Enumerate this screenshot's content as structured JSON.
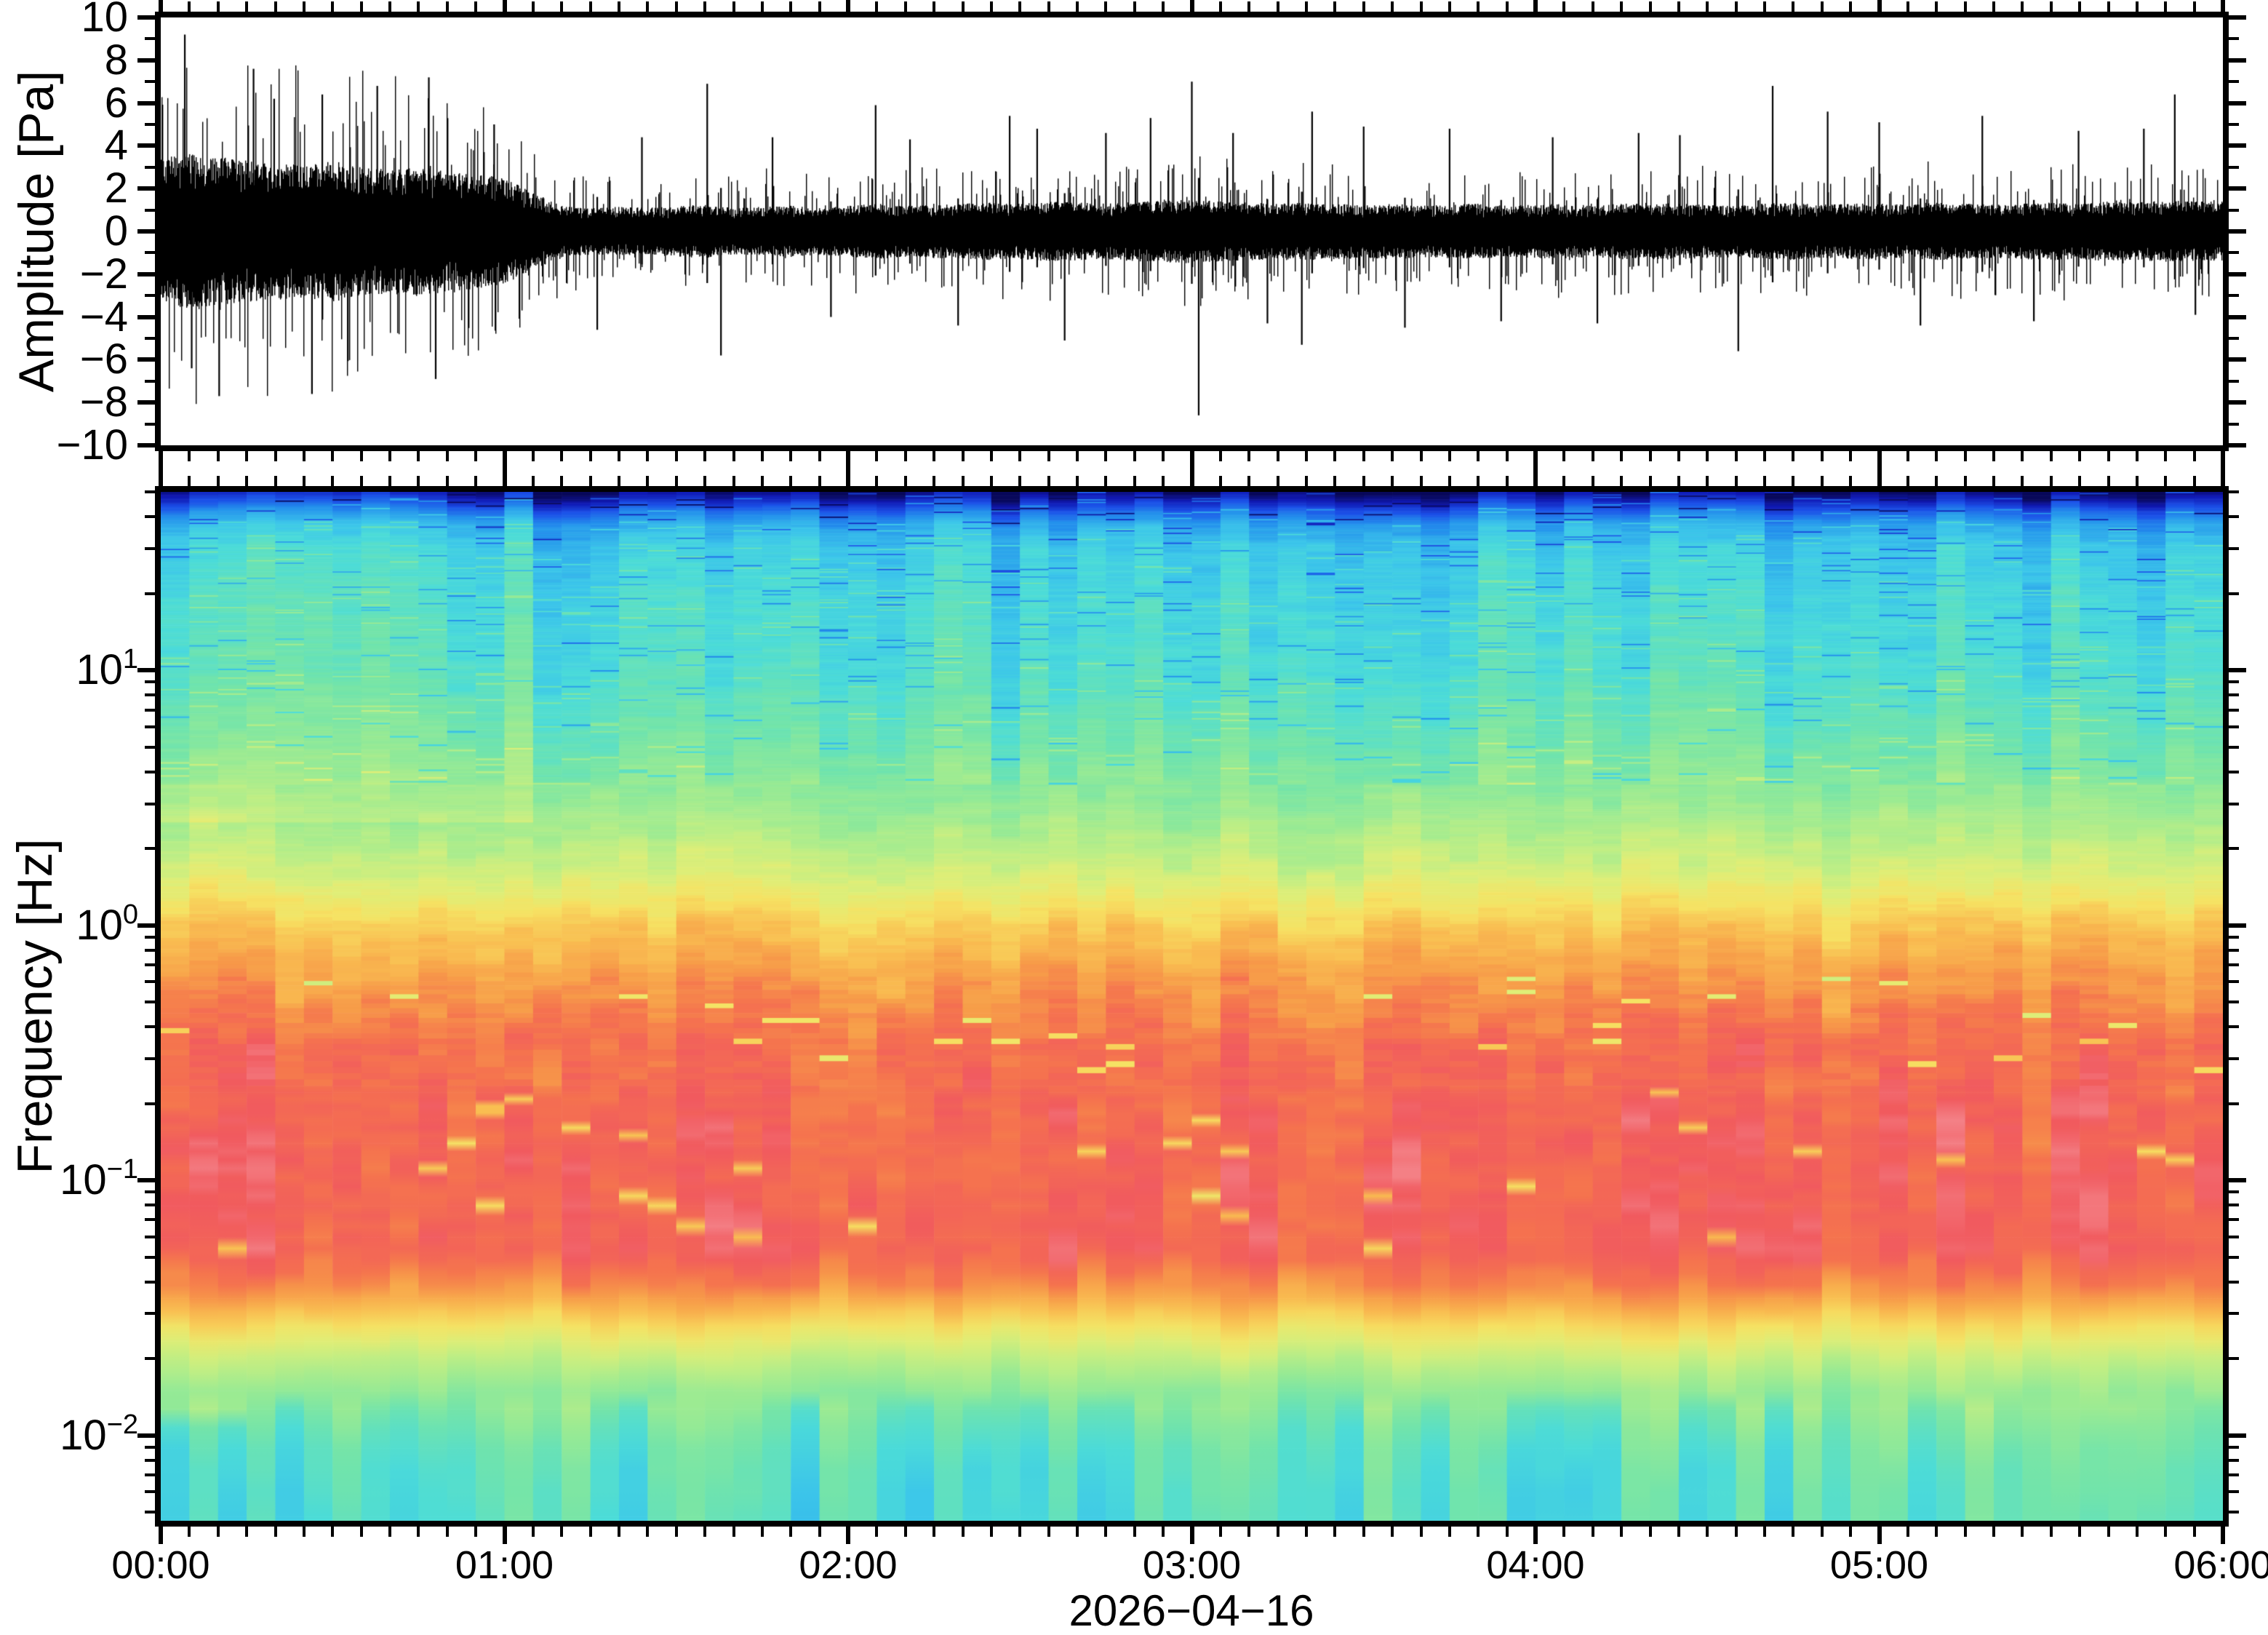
{
  "figure": {
    "background": "#ffffff",
    "frame_color": "#000000",
    "waveform_color": "#000000",
    "text_color": "#000000"
  },
  "top_plot": {
    "ylabel": "Amplitude [Pa]",
    "ytick_values": [
      10,
      8,
      6,
      4,
      2,
      0,
      -2,
      -4,
      -6,
      -8,
      -10
    ],
    "ytick_labels": [
      "10",
      "8",
      "6",
      "4",
      "2",
      "0",
      "−2",
      "−4",
      "−6",
      "−8",
      "−10"
    ],
    "yminor_step": 1,
    "ylim": [
      -10,
      10
    ]
  },
  "spectrogram_plot": {
    "ylabel": "Frequency [Hz]",
    "ytick_base": "10",
    "ytick_exponents": [
      "1",
      "0",
      "−1",
      "−2"
    ],
    "ytick_exponent_values": [
      1,
      0,
      -1,
      -2
    ],
    "freq_hz_top": 50,
    "freq_hz_bottom": 0.0046
  },
  "xaxis": {
    "tick_labels": [
      "00:00",
      "01:00",
      "02:00",
      "03:00",
      "04:00",
      "05:00",
      "06:00"
    ],
    "tick_hours": [
      0,
      1,
      2,
      3,
      4,
      5,
      6
    ],
    "minor_step_minutes": 5,
    "date_label": "2026−04−16"
  },
  "chart_data": [
    {
      "type": "line",
      "name": "infrasound-waveform",
      "ylabel": "Amplitude [Pa]",
      "ylim": [
        -10,
        10
      ],
      "x_range_hours": [
        0,
        6
      ],
      "color": "#000000",
      "seed": 20260416,
      "envelope_interval_minutes": 5,
      "envelope_pa": [
        3.4,
        3.7,
        3.5,
        3.3,
        3.2,
        3.1,
        3.3,
        3.0,
        2.9,
        3.1,
        2.8,
        2.7,
        2.5,
        1.8,
        1.2,
        1.1,
        1.15,
        1.1,
        1.2,
        1.25,
        1.1,
        1.15,
        1.2,
        1.1,
        1.2,
        1.3,
        1.2,
        1.25,
        1.3,
        1.35,
        1.3,
        1.4,
        1.35,
        1.3,
        1.4,
        1.45,
        1.5,
        1.4,
        1.35,
        1.3,
        1.35,
        1.3,
        1.25,
        1.3,
        1.2,
        1.25,
        1.3,
        1.2,
        1.25,
        1.3,
        1.2,
        1.3,
        1.35,
        1.3,
        1.25,
        1.2,
        1.3,
        1.35,
        1.25,
        1.3,
        1.3,
        1.25,
        1.35,
        1.3,
        1.25,
        1.3,
        1.35,
        1.3,
        1.4,
        1.35,
        1.45,
        1.4
      ],
      "spikes_t_hours_amp_pa": [
        [
          0.07,
          9.2
        ],
        [
          0.09,
          -6.4
        ],
        [
          0.17,
          -7.7
        ],
        [
          0.27,
          7.6
        ],
        [
          0.33,
          6.2
        ],
        [
          0.44,
          -7.6
        ],
        [
          0.47,
          6.4
        ],
        [
          0.63,
          6.8
        ],
        [
          0.78,
          7.2
        ],
        [
          0.8,
          -6.9
        ],
        [
          0.97,
          5.0
        ],
        [
          1.27,
          -4.6
        ],
        [
          1.4,
          4.4
        ],
        [
          1.59,
          6.9
        ],
        [
          1.63,
          -5.8
        ],
        [
          1.78,
          4.4
        ],
        [
          1.95,
          -4.0
        ],
        [
          2.08,
          5.9
        ],
        [
          2.18,
          4.3
        ],
        [
          2.32,
          -4.4
        ],
        [
          2.47,
          5.4
        ],
        [
          2.55,
          4.8
        ],
        [
          2.63,
          -5.1
        ],
        [
          2.75,
          4.6
        ],
        [
          2.88,
          5.3
        ],
        [
          3.0,
          7.0
        ],
        [
          3.02,
          -8.6
        ],
        [
          3.12,
          4.6
        ],
        [
          3.22,
          -4.3
        ],
        [
          3.32,
          -5.3
        ],
        [
          3.35,
          5.6
        ],
        [
          3.5,
          4.9
        ],
        [
          3.62,
          -4.5
        ],
        [
          3.75,
          4.8
        ],
        [
          3.9,
          -4.2
        ],
        [
          4.05,
          4.4
        ],
        [
          4.18,
          -4.3
        ],
        [
          4.3,
          4.6
        ],
        [
          4.42,
          4.5
        ],
        [
          4.59,
          -5.6
        ],
        [
          4.69,
          6.8
        ],
        [
          4.85,
          5.6
        ],
        [
          5.0,
          5.1
        ],
        [
          5.12,
          -4.4
        ],
        [
          5.3,
          5.4
        ],
        [
          5.45,
          -4.2
        ],
        [
          5.58,
          4.7
        ],
        [
          5.77,
          4.8
        ],
        [
          5.86,
          6.4
        ],
        [
          5.92,
          -3.9
        ]
      ]
    },
    {
      "type": "heatmap",
      "name": "spectrogram",
      "ylabel": "Frequency [Hz]",
      "ylog": true,
      "freq_hz_range": [
        0.0046,
        50
      ],
      "log10f_top": 1.7,
      "log10f_bottom": -2.335,
      "time_columns": 72,
      "seed": 416,
      "power_profile_log10f_p": [
        [
          1.7,
          0.01
        ],
        [
          1.67,
          0.05
        ],
        [
          1.63,
          0.12
        ],
        [
          1.57,
          0.21
        ],
        [
          1.48,
          0.27
        ],
        [
          1.3,
          0.3
        ],
        [
          1.0,
          0.33
        ],
        [
          0.7,
          0.4
        ],
        [
          0.48,
          0.47
        ],
        [
          0.21,
          0.58
        ],
        [
          0.0,
          0.7
        ],
        [
          -0.21,
          0.78
        ],
        [
          -0.48,
          0.85
        ],
        [
          -0.8,
          0.87
        ],
        [
          -1.3,
          0.88
        ],
        [
          -1.45,
          0.8
        ],
        [
          -1.59,
          0.67
        ],
        [
          -1.72,
          0.56
        ],
        [
          -1.85,
          0.47
        ],
        [
          -1.98,
          0.41
        ],
        [
          -2.12,
          0.37
        ],
        [
          -2.335,
          0.35
        ]
      ],
      "colormap_stops": [
        [
          0.0,
          "#08085a"
        ],
        [
          0.05,
          "#1019b4"
        ],
        [
          0.11,
          "#1b50e8"
        ],
        [
          0.18,
          "#2492ec"
        ],
        [
          0.26,
          "#3cc6ea"
        ],
        [
          0.32,
          "#4cdcd8"
        ],
        [
          0.4,
          "#72e4ab"
        ],
        [
          0.47,
          "#96ea95"
        ],
        [
          0.54,
          "#bcee86"
        ],
        [
          0.6,
          "#dfee77"
        ],
        [
          0.66,
          "#f6e263"
        ],
        [
          0.72,
          "#f9bd51"
        ],
        [
          0.78,
          "#f79c49"
        ],
        [
          0.84,
          "#f5744e"
        ],
        [
          0.9,
          "#f15a5f"
        ],
        [
          0.96,
          "#f59399"
        ],
        [
          1.0,
          "#fac6c6"
        ]
      ],
      "noise": {
        "column_jitter": 0.03,
        "upper_column_jitter": 0.045,
        "bottom_column_jitter": 0.07,
        "row_walk_smooth": 0.72,
        "amp_top": 0.02,
        "amp_upper": 0.05,
        "amp_mid": 0.055,
        "amp_red": 0.08,
        "amp_bottom": 0.045
      },
      "features": {
        "first_hour_cols": 13,
        "first_hour_highfreq_boost": 0.05,
        "corner_cols": 3,
        "corner_lowfreq_dip": -0.1,
        "sparse_blue_line_prob": 0.025,
        "sparse_blue_line_dip": -0.13,
        "sparse_bright_line_prob": 0.03,
        "sparse_bright_line_boost": 0.09,
        "red_zone_streak_prob": 0.02,
        "red_zone_streak_dip": -0.18
      }
    }
  ]
}
